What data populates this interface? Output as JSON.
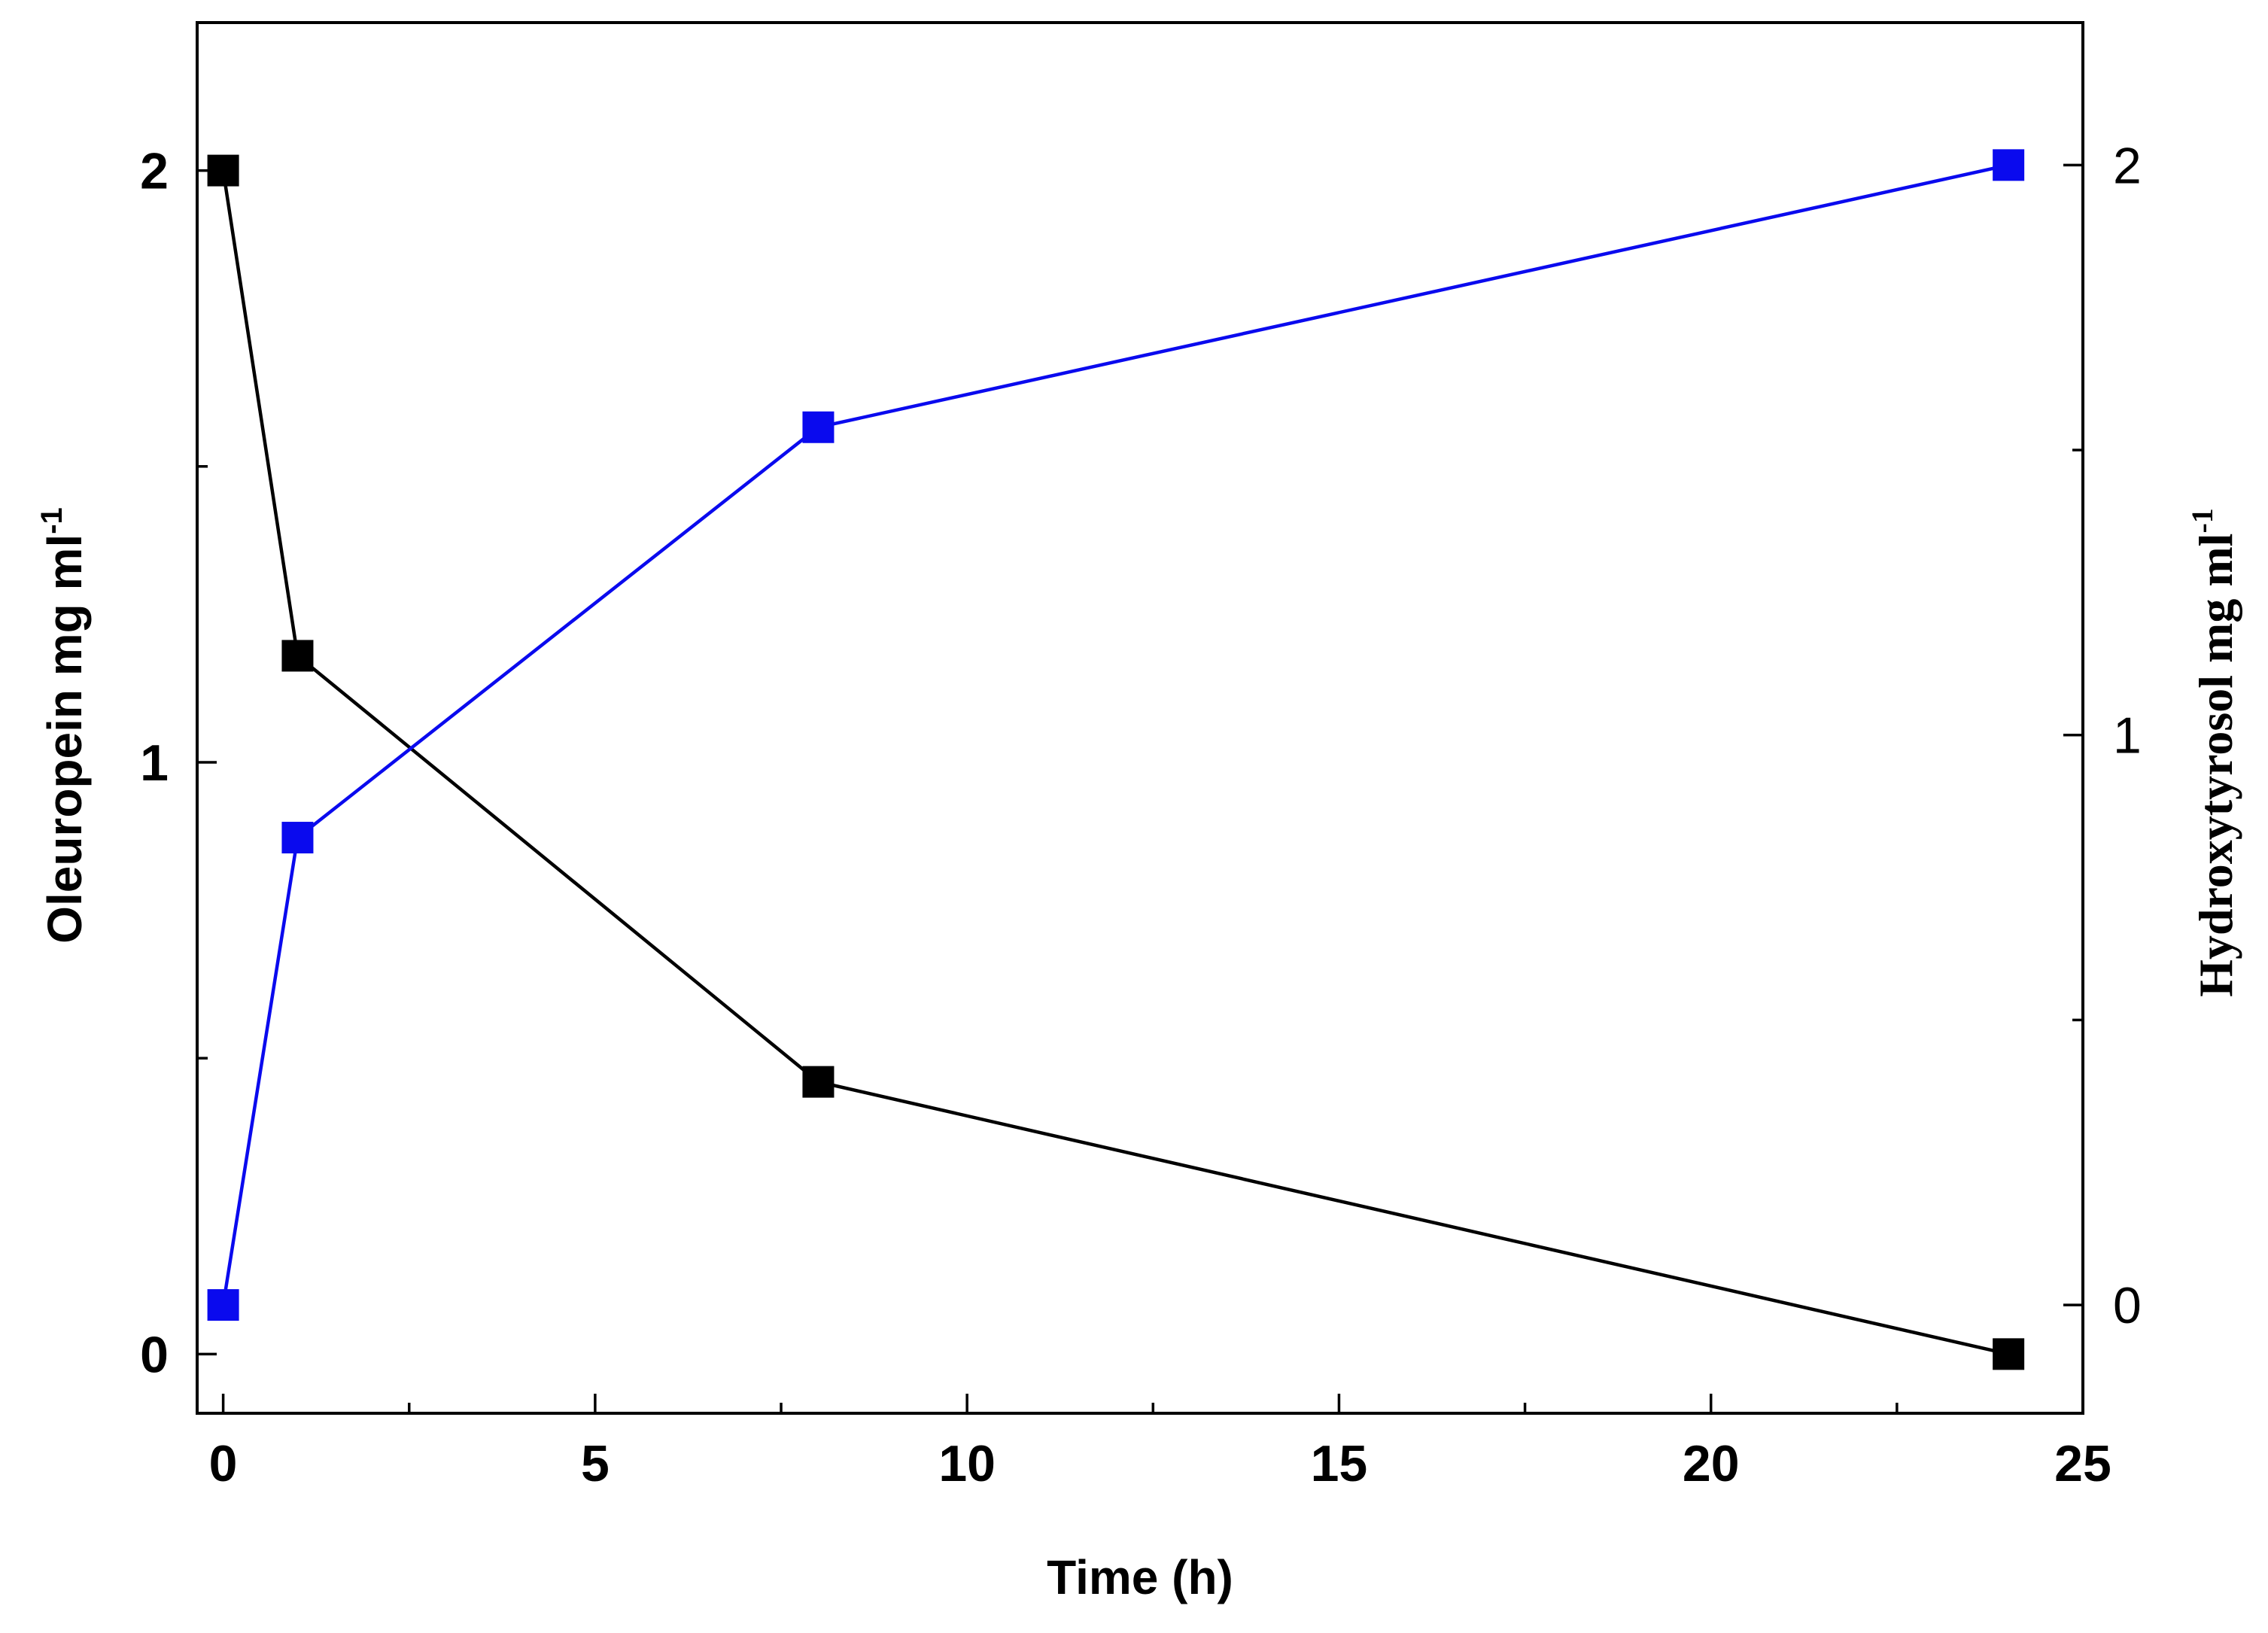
{
  "chart_data": {
    "type": "line",
    "xlabel": "Time (h)",
    "ylabel_left": {
      "text": "Oleuropein mg ml",
      "sup": "-1"
    },
    "ylabel_right": {
      "text": "Hydroxytyrosol mg ml",
      "sup": "-1"
    },
    "xlim": [
      -0.35,
      25
    ],
    "ylim_left": [
      -0.1,
      2.25
    ],
    "ylim_right": [
      -0.19,
      2.25
    ],
    "xticks": [
      "0",
      "5",
      "10",
      "15",
      "20",
      "25"
    ],
    "yticks_left": [
      "0",
      "1",
      "2"
    ],
    "yticks_right": [
      "0",
      "1",
      "2"
    ],
    "grid": false,
    "series": [
      {
        "axis": "left",
        "color": "#000000",
        "x": [
          0,
          1,
          8,
          24
        ],
        "y": [
          2.0,
          1.18,
          0.46,
          0.0
        ]
      },
      {
        "axis": "right",
        "color": "#0a0aee",
        "x": [
          0,
          1,
          8,
          24
        ],
        "y": [
          0.0,
          0.82,
          1.54,
          2.0
        ]
      }
    ]
  }
}
